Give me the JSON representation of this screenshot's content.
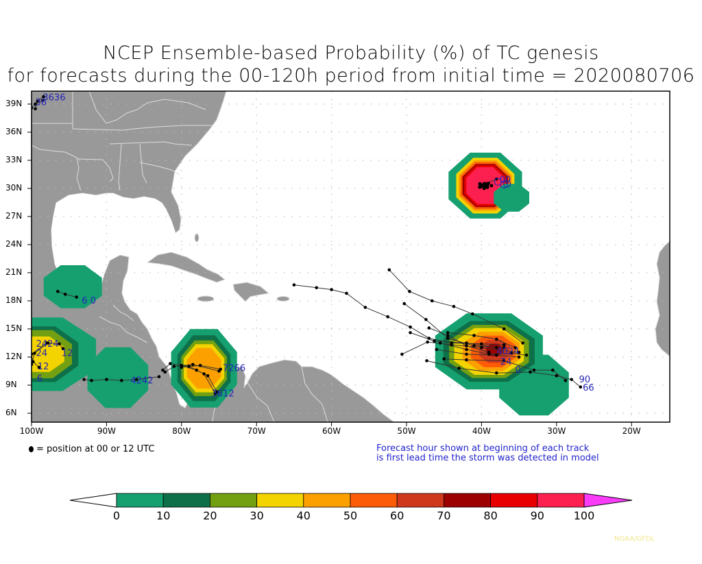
{
  "title": {
    "line1": "NCEP Ensemble-based Probability (%) of TC genesis",
    "line2": "for forecasts during the 00-120h period from initial time = 2020080706"
  },
  "axes": {
    "lat_labels": [
      "39N",
      "36N",
      "33N",
      "30N",
      "27N",
      "24N",
      "21N",
      "18N",
      "15N",
      "12N",
      "9N",
      "6N"
    ],
    "lat_values": [
      39,
      36,
      33,
      30,
      27,
      24,
      21,
      18,
      15,
      12,
      9,
      6
    ],
    "lon_labels": [
      "100W",
      "90W",
      "80W",
      "70W",
      "60W",
      "50W",
      "40W",
      "30W",
      "20W"
    ],
    "lon_values": [
      -100,
      -90,
      -80,
      -70,
      -60,
      -50,
      -40,
      -30,
      -20
    ],
    "lon_range": [
      -100,
      -15
    ],
    "lat_range": [
      5,
      40
    ]
  },
  "legend": {
    "dot_text": "= position at 00 or 12 UTC",
    "note_line1": "Forecast hour shown at beginning of each track",
    "note_line2": "is first lead time the storm was detected in model"
  },
  "colorbar": {
    "labels": [
      "0",
      "10",
      "20",
      "30",
      "40",
      "50",
      "60",
      "70",
      "80",
      "90",
      "100"
    ],
    "colors": [
      "#16a070",
      "#0e7048",
      "#72a012",
      "#f4d400",
      "#fca000",
      "#fc5c08",
      "#d0381c",
      "#9c0000",
      "#e80000",
      "#fc2050"
    ],
    "under_color": "#ffffff",
    "over_color": "#f83cf8"
  },
  "colors": {
    "land": "#999999",
    "border": "#dddddd",
    "track_label": "#2424b4",
    "grid": "#bbbbbb"
  },
  "track_labels": [
    {
      "text": "3636",
      "lon": -98.5,
      "lat": 39.4
    },
    {
      "text": "36",
      "lon": -99.5,
      "lat": 38.9
    },
    {
      "text": "6 0",
      "lon": -93.3,
      "lat": 17.7
    },
    {
      "text": "2424",
      "lon": -99.4,
      "lat": 13.1
    },
    {
      "text": "24",
      "lon": -99.4,
      "lat": 12.1
    },
    {
      "text": "12",
      "lon": -96.0,
      "lat": 12.1
    },
    {
      "text": "12",
      "lon": -99.2,
      "lat": 10.7
    },
    {
      "text": "6",
      "lon": -99.3,
      "lat": 9.4
    },
    {
      "text": "4242",
      "lon": -86.8,
      "lat": 9.2
    },
    {
      "text": "7266",
      "lon": -74.5,
      "lat": 10.5
    },
    {
      "text": "3612",
      "lon": -76.0,
      "lat": 7.8
    },
    {
      "text": "4024",
      "lon": -38.0,
      "lat": 12.3
    },
    {
      "text": "24",
      "lon": -37.5,
      "lat": 11.2
    },
    {
      "text": "90",
      "lon": -27.0,
      "lat": 9.3
    },
    {
      "text": "66",
      "lon": -26.5,
      "lat": 8.4
    },
    {
      "text": "0",
      "lon": -35.5,
      "lat": 10.3
    },
    {
      "text": "00",
      "lon": -37.6,
      "lat": 30.6
    }
  ],
  "credit": "NOAA/GFDL"
}
